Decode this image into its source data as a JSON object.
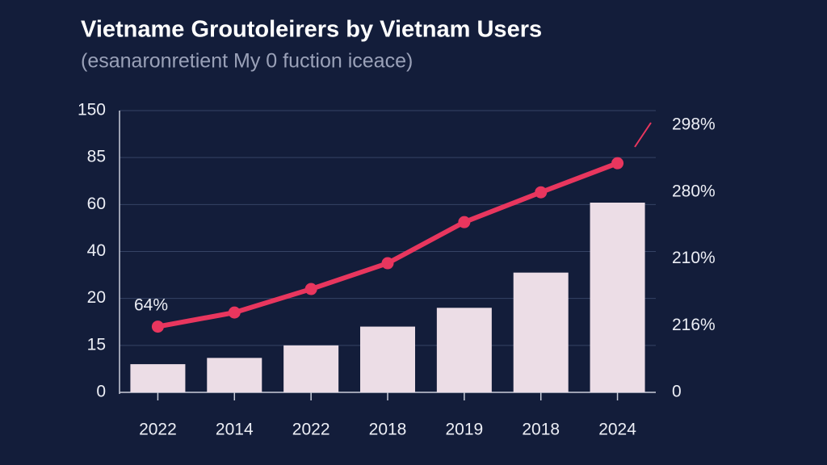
{
  "chart_data": {
    "type": "combo",
    "title": "Vietname Groutoleirers by Vietnam Users",
    "subtitle": "(esanaronretient My 0 fuction iceace)",
    "categories": [
      "2022",
      "2014",
      "2022",
      "2018",
      "2019",
      "2018",
      "2024"
    ],
    "series": [
      {
        "type": "bar",
        "color": "#ecdde6",
        "values": [
          9,
          11,
          15,
          17,
          19,
          31,
          61
        ]
      },
      {
        "type": "line",
        "color": "#e8365e",
        "values": [
          17,
          18.5,
          24,
          35,
          52.5,
          66.5,
          82
        ]
      }
    ],
    "ylim": [
      0,
      150
    ],
    "yticks": [
      0,
      15,
      20,
      40,
      60,
      85,
      150
    ],
    "y2ticks": [
      0,
      {
        "value": 216,
        "label": "216%"
      },
      {
        "value": 210,
        "label": "210%"
      },
      {
        "value": 280,
        "label": "280%"
      },
      {
        "value": 298,
        "label": "298%"
      }
    ],
    "annotations": [
      {
        "text": "64%"
      }
    ],
    "grid": true
  }
}
